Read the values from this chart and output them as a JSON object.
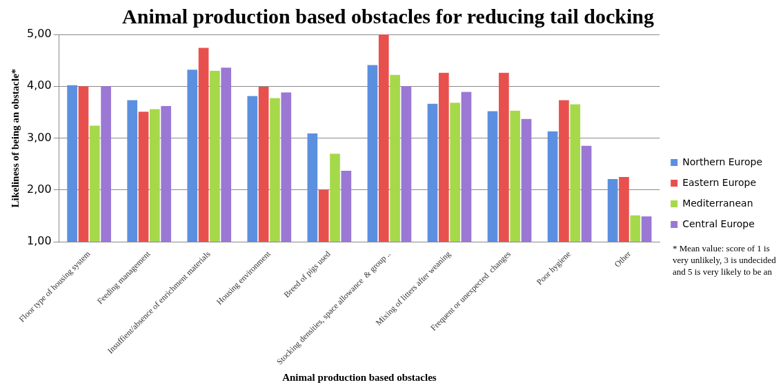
{
  "chart_data": {
    "type": "bar",
    "title": "Animal production based obstacles for reducing tail docking",
    "xlabel": "Animal production based obstacles",
    "ylabel": "Likeliness of being an obstacle*",
    "categories": [
      "Floor type of housing system",
      "Feeding management",
      "Insuffient/absence of enrichment materials",
      "Housing environment",
      "Breed of pigs used",
      "Stocking densities, space allowance  & group ..",
      "Mixing of litters after weaning",
      "Frequent or unexpected  changes",
      "Poor hygiene",
      "Other"
    ],
    "series": [
      {
        "name": "Northern Europe",
        "color": "#5b8fe0",
        "values": [
          4.02,
          3.73,
          4.32,
          3.81,
          3.09,
          4.41,
          3.66,
          3.52,
          3.13,
          2.21
        ]
      },
      {
        "name": "Eastern Europe",
        "color": "#e8504e",
        "values": [
          4.0,
          3.51,
          4.74,
          3.99,
          2.0,
          5.0,
          4.26,
          4.26,
          3.73,
          2.25
        ]
      },
      {
        "name": "Mediterranean",
        "color": "#a6d94a",
        "values": [
          3.24,
          3.56,
          4.3,
          3.77,
          2.7,
          4.22,
          3.68,
          3.53,
          3.65,
          1.51
        ]
      },
      {
        "name": "Central Europe",
        "color": "#9a78d4",
        "values": [
          4.0,
          3.62,
          4.36,
          3.88,
          2.37,
          4.0,
          3.89,
          3.37,
          2.85,
          1.49
        ]
      }
    ],
    "ylim": [
      1,
      5
    ],
    "yticks": [
      {
        "value": 1,
        "label": "1,00"
      },
      {
        "value": 2,
        "label": "2,00"
      },
      {
        "value": 3,
        "label": "3,00"
      },
      {
        "value": 4,
        "label": "4,00"
      },
      {
        "value": 5,
        "label": "5,00"
      }
    ],
    "grid": "y",
    "legend": "right",
    "annotations": [
      "* Mean value: score of 1 is very unlikely, 3 is undecided and 5 is very likely to be an"
    ]
  }
}
